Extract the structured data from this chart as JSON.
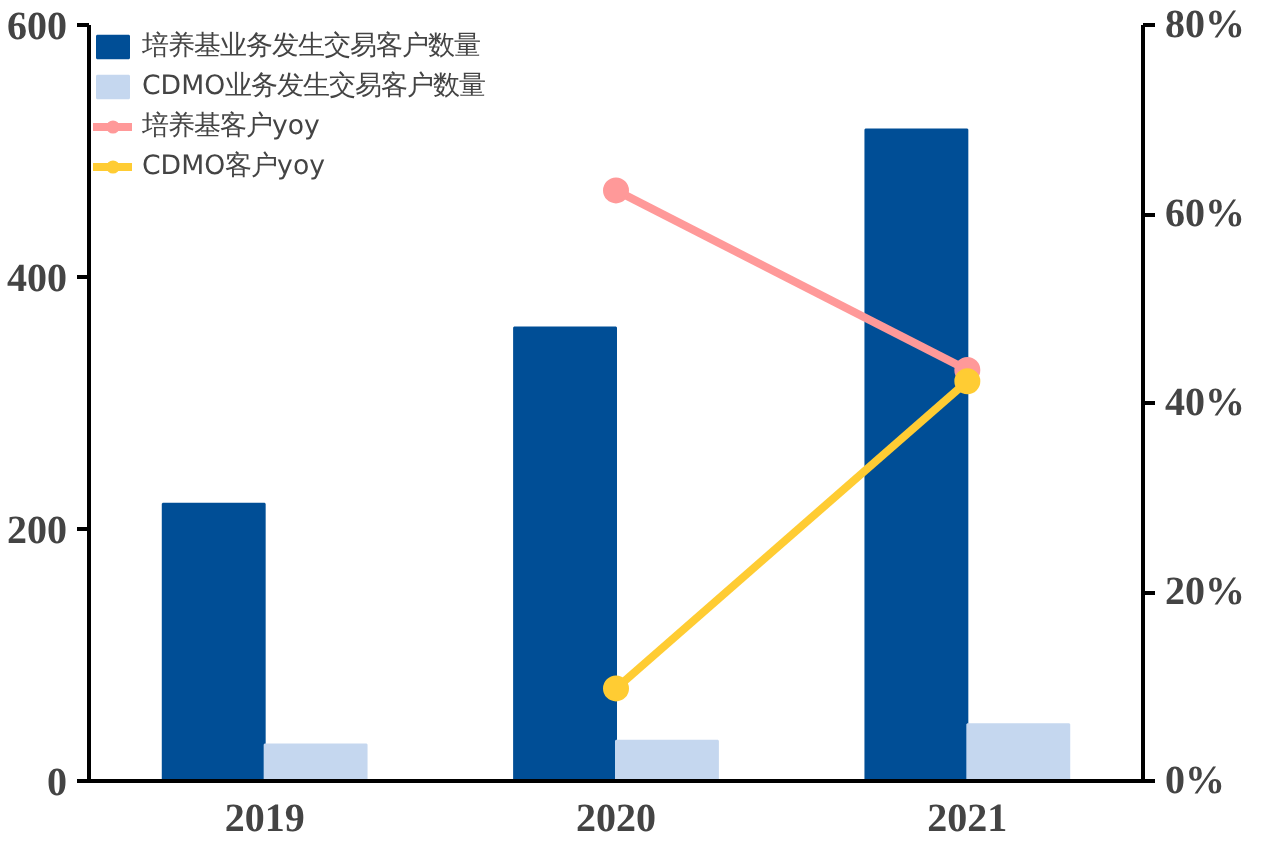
{
  "chart_data": {
    "type": "bar",
    "categories": [
      "2019",
      "2020",
      "2021"
    ],
    "series": [
      {
        "name": "培养基业务发生交易客户数量",
        "color": "#004e96",
        "values": [
          220,
          360,
          517
        ]
      },
      {
        "name": "CDMO业务发生交易客户数量",
        "color": "#c5d7ef",
        "values": [
          29,
          32,
          45
        ]
      },
      {
        "name": "培养基客户yoy",
        "type": "line",
        "axis": "y2",
        "marker": "circle",
        "color": "#ff9999",
        "values": [
          null,
          62.5,
          43.5
        ]
      },
      {
        "name": "CDMO客户yoy",
        "type": "line",
        "axis": "y2",
        "marker": "circle",
        "color": "#ffcc33",
        "values": [
          null,
          9.8,
          42.3
        ]
      }
    ],
    "ylim": [
      0,
      600
    ],
    "yticks": [
      0,
      200,
      400,
      600
    ],
    "y2lim": [
      0,
      80
    ],
    "y2ticks": [
      {
        "value": 0,
        "label": "0%"
      },
      {
        "value": 20,
        "label": "20%"
      },
      {
        "value": 40,
        "label": "40%"
      },
      {
        "value": 60,
        "label": "60%"
      },
      {
        "value": 80,
        "label": "80%"
      }
    ],
    "grid": false,
    "legend": "top left"
  }
}
